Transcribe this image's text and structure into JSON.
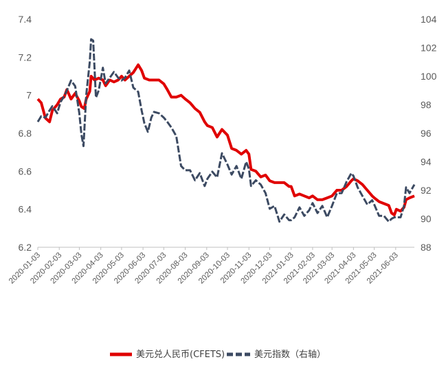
{
  "chart_data": {
    "type": "line",
    "title": "",
    "xlabel": "",
    "ylabel_left": "",
    "ylabel_right": "",
    "left_axis": {
      "min": 6.2,
      "max": 7.4,
      "ticks": [
        6.2,
        6.4,
        6.6,
        6.8,
        7,
        7.2,
        7.4
      ]
    },
    "right_axis": {
      "min": 88,
      "max": 104,
      "ticks": [
        88,
        90,
        92,
        94,
        96,
        98,
        100,
        102,
        104
      ]
    },
    "x_start": "2020-01-03",
    "x_end": "2021-06-30",
    "x_ticks": [
      "2020-01-03",
      "2020-02-03",
      "2020-03-03",
      "2020-04-03",
      "2020-05-03",
      "2020-06-03",
      "2020-07-03",
      "2020-08-03",
      "2020-09-03",
      "2020-10-03",
      "2020-11-03",
      "2020-12-03",
      "2021-01-03",
      "2021-02-03",
      "2021-03-03",
      "2021-04-03",
      "2021-05-03",
      "2021-06-03"
    ],
    "legend_position": "bottom",
    "series": [
      {
        "name": "美元兑人民币(CFETS)",
        "axis": "left",
        "color": "#e00000",
        "style": "solid",
        "points": [
          [
            "2020-01-03",
            6.98
          ],
          [
            "2020-01-08",
            6.96
          ],
          [
            "2020-01-14",
            6.88
          ],
          [
            "2020-01-20",
            6.86
          ],
          [
            "2020-01-24",
            6.92
          ],
          [
            "2020-01-31",
            6.95
          ],
          [
            "2020-02-05",
            6.98
          ],
          [
            "2020-02-10",
            6.99
          ],
          [
            "2020-02-14",
            7.03
          ],
          [
            "2020-02-20",
            6.98
          ],
          [
            "2020-02-26",
            7.01
          ],
          [
            "2020-03-03",
            6.97
          ],
          [
            "2020-03-06",
            6.94
          ],
          [
            "2020-03-10",
            6.93
          ],
          [
            "2020-03-13",
            6.98
          ],
          [
            "2020-03-18",
            7.02
          ],
          [
            "2020-03-20",
            7.1
          ],
          [
            "2020-03-25",
            7.08
          ],
          [
            "2020-03-31",
            7.09
          ],
          [
            "2020-04-06",
            7.08
          ],
          [
            "2020-04-10",
            7.05
          ],
          [
            "2020-04-16",
            7.08
          ],
          [
            "2020-04-22",
            7.07
          ],
          [
            "2020-04-28",
            7.08
          ],
          [
            "2020-05-03",
            7.1
          ],
          [
            "2020-05-08",
            7.08
          ],
          [
            "2020-05-14",
            7.1
          ],
          [
            "2020-05-20",
            7.12
          ],
          [
            "2020-05-27",
            7.16
          ],
          [
            "2020-06-01",
            7.13
          ],
          [
            "2020-06-05",
            7.09
          ],
          [
            "2020-06-12",
            7.08
          ],
          [
            "2020-06-19",
            7.08
          ],
          [
            "2020-06-26",
            7.08
          ],
          [
            "2020-07-03",
            7.06
          ],
          [
            "2020-07-08",
            7.03
          ],
          [
            "2020-07-14",
            6.99
          ],
          [
            "2020-07-21",
            6.99
          ],
          [
            "2020-07-28",
            7.0
          ],
          [
            "2020-08-03",
            6.98
          ],
          [
            "2020-08-10",
            6.96
          ],
          [
            "2020-08-17",
            6.93
          ],
          [
            "2020-08-24",
            6.91
          ],
          [
            "2020-08-31",
            6.86
          ],
          [
            "2020-09-04",
            6.84
          ],
          [
            "2020-09-11",
            6.83
          ],
          [
            "2020-09-18",
            6.78
          ],
          [
            "2020-09-25",
            6.82
          ],
          [
            "2020-10-03",
            6.79
          ],
          [
            "2020-10-09",
            6.72
          ],
          [
            "2020-10-16",
            6.71
          ],
          [
            "2020-10-23",
            6.69
          ],
          [
            "2020-10-30",
            6.71
          ],
          [
            "2020-11-03",
            6.69
          ],
          [
            "2020-11-06",
            6.61
          ],
          [
            "2020-11-13",
            6.6
          ],
          [
            "2020-11-20",
            6.57
          ],
          [
            "2020-11-27",
            6.58
          ],
          [
            "2020-12-03",
            6.55
          ],
          [
            "2020-12-10",
            6.54
          ],
          [
            "2020-12-17",
            6.54
          ],
          [
            "2020-12-24",
            6.54
          ],
          [
            "2020-12-31",
            6.52
          ],
          [
            "2021-01-03",
            6.52
          ],
          [
            "2021-01-08",
            6.47
          ],
          [
            "2021-01-15",
            6.48
          ],
          [
            "2021-01-22",
            6.47
          ],
          [
            "2021-01-29",
            6.46
          ],
          [
            "2021-02-03",
            6.47
          ],
          [
            "2021-02-10",
            6.45
          ],
          [
            "2021-02-17",
            6.45
          ],
          [
            "2021-02-24",
            6.46
          ],
          [
            "2021-03-03",
            6.47
          ],
          [
            "2021-03-10",
            6.5
          ],
          [
            "2021-03-17",
            6.5
          ],
          [
            "2021-03-24",
            6.52
          ],
          [
            "2021-03-31",
            6.55
          ],
          [
            "2021-04-03",
            6.56
          ],
          [
            "2021-04-09",
            6.55
          ],
          [
            "2021-04-16",
            6.53
          ],
          [
            "2021-04-23",
            6.5
          ],
          [
            "2021-04-30",
            6.47
          ],
          [
            "2021-05-03",
            6.46
          ],
          [
            "2021-05-10",
            6.44
          ],
          [
            "2021-05-17",
            6.43
          ],
          [
            "2021-05-24",
            6.42
          ],
          [
            "2021-05-28",
            6.38
          ],
          [
            "2021-06-01",
            6.37
          ],
          [
            "2021-06-04",
            6.4
          ],
          [
            "2021-06-10",
            6.39
          ],
          [
            "2021-06-15",
            6.41
          ],
          [
            "2021-06-18",
            6.45
          ],
          [
            "2021-06-23",
            6.46
          ],
          [
            "2021-06-30",
            6.47
          ]
        ]
      },
      {
        "name": "美元指数（右轴）",
        "axis": "right",
        "color": "#3c4a62",
        "style": "dashed",
        "points": [
          [
            "2020-01-03",
            96.8
          ],
          [
            "2020-01-08",
            97.2
          ],
          [
            "2020-01-14",
            97.1
          ],
          [
            "2020-01-20",
            97.6
          ],
          [
            "2020-01-24",
            97.9
          ],
          [
            "2020-01-31",
            97.4
          ],
          [
            "2020-02-05",
            98.2
          ],
          [
            "2020-02-10",
            98.6
          ],
          [
            "2020-02-14",
            99.0
          ],
          [
            "2020-02-20",
            99.7
          ],
          [
            "2020-02-26",
            99.3
          ],
          [
            "2020-03-03",
            97.4
          ],
          [
            "2020-03-06",
            95.9
          ],
          [
            "2020-03-09",
            95.1
          ],
          [
            "2020-03-13",
            98.7
          ],
          [
            "2020-03-18",
            101.0
          ],
          [
            "2020-03-20",
            102.6
          ],
          [
            "2020-03-23",
            102.5
          ],
          [
            "2020-03-27",
            98.5
          ],
          [
            "2020-03-31",
            99.0
          ],
          [
            "2020-04-06",
            100.6
          ],
          [
            "2020-04-10",
            99.5
          ],
          [
            "2020-04-16",
            99.9
          ],
          [
            "2020-04-22",
            100.3
          ],
          [
            "2020-04-28",
            99.9
          ],
          [
            "2020-05-03",
            99.7
          ],
          [
            "2020-05-08",
            99.9
          ],
          [
            "2020-05-14",
            100.4
          ],
          [
            "2020-05-20",
            99.2
          ],
          [
            "2020-05-27",
            98.9
          ],
          [
            "2020-06-01",
            97.6
          ],
          [
            "2020-06-05",
            96.7
          ],
          [
            "2020-06-10",
            96.1
          ],
          [
            "2020-06-15",
            97.1
          ],
          [
            "2020-06-19",
            97.5
          ],
          [
            "2020-06-26",
            97.4
          ],
          [
            "2020-07-03",
            97.1
          ],
          [
            "2020-07-08",
            96.8
          ],
          [
            "2020-07-14",
            96.4
          ],
          [
            "2020-07-21",
            95.8
          ],
          [
            "2020-07-28",
            93.7
          ],
          [
            "2020-08-03",
            93.4
          ],
          [
            "2020-08-10",
            93.4
          ],
          [
            "2020-08-17",
            92.7
          ],
          [
            "2020-08-24",
            93.2
          ],
          [
            "2020-08-31",
            92.3
          ],
          [
            "2020-09-04",
            92.8
          ],
          [
            "2020-09-11",
            93.3
          ],
          [
            "2020-09-18",
            92.9
          ],
          [
            "2020-09-25",
            94.6
          ],
          [
            "2020-10-03",
            93.8
          ],
          [
            "2020-10-09",
            93.1
          ],
          [
            "2020-10-16",
            93.7
          ],
          [
            "2020-10-23",
            92.8
          ],
          [
            "2020-10-30",
            94.0
          ],
          [
            "2020-11-03",
            93.5
          ],
          [
            "2020-11-06",
            92.3
          ],
          [
            "2020-11-13",
            92.7
          ],
          [
            "2020-11-20",
            92.4
          ],
          [
            "2020-11-27",
            91.8
          ],
          [
            "2020-12-03",
            90.7
          ],
          [
            "2020-12-10",
            90.9
          ],
          [
            "2020-12-17",
            89.8
          ],
          [
            "2020-12-24",
            90.3
          ],
          [
            "2020-12-31",
            89.9
          ],
          [
            "2021-01-03",
            89.9
          ],
          [
            "2021-01-08",
            90.1
          ],
          [
            "2021-01-15",
            90.8
          ],
          [
            "2021-01-22",
            90.2
          ],
          [
            "2021-01-29",
            90.6
          ],
          [
            "2021-02-03",
            91.1
          ],
          [
            "2021-02-10",
            90.4
          ],
          [
            "2021-02-17",
            90.9
          ],
          [
            "2021-02-24",
            90.1
          ],
          [
            "2021-03-03",
            90.9
          ],
          [
            "2021-03-10",
            91.8
          ],
          [
            "2021-03-17",
            91.8
          ],
          [
            "2021-03-24",
            92.6
          ],
          [
            "2021-03-31",
            93.2
          ],
          [
            "2021-04-03",
            93.0
          ],
          [
            "2021-04-09",
            92.2
          ],
          [
            "2021-04-16",
            91.6
          ],
          [
            "2021-04-23",
            91.0
          ],
          [
            "2021-04-30",
            91.3
          ],
          [
            "2021-05-03",
            91.0
          ],
          [
            "2021-05-10",
            90.2
          ],
          [
            "2021-05-17",
            90.2
          ],
          [
            "2021-05-24",
            89.8
          ],
          [
            "2021-05-28",
            90.0
          ],
          [
            "2021-06-01",
            90.1
          ],
          [
            "2021-06-04",
            90.1
          ],
          [
            "2021-06-10",
            90.1
          ],
          [
            "2021-06-15",
            90.9
          ],
          [
            "2021-06-18",
            92.2
          ],
          [
            "2021-06-23",
            91.8
          ],
          [
            "2021-06-30",
            92.4
          ]
        ]
      }
    ]
  }
}
